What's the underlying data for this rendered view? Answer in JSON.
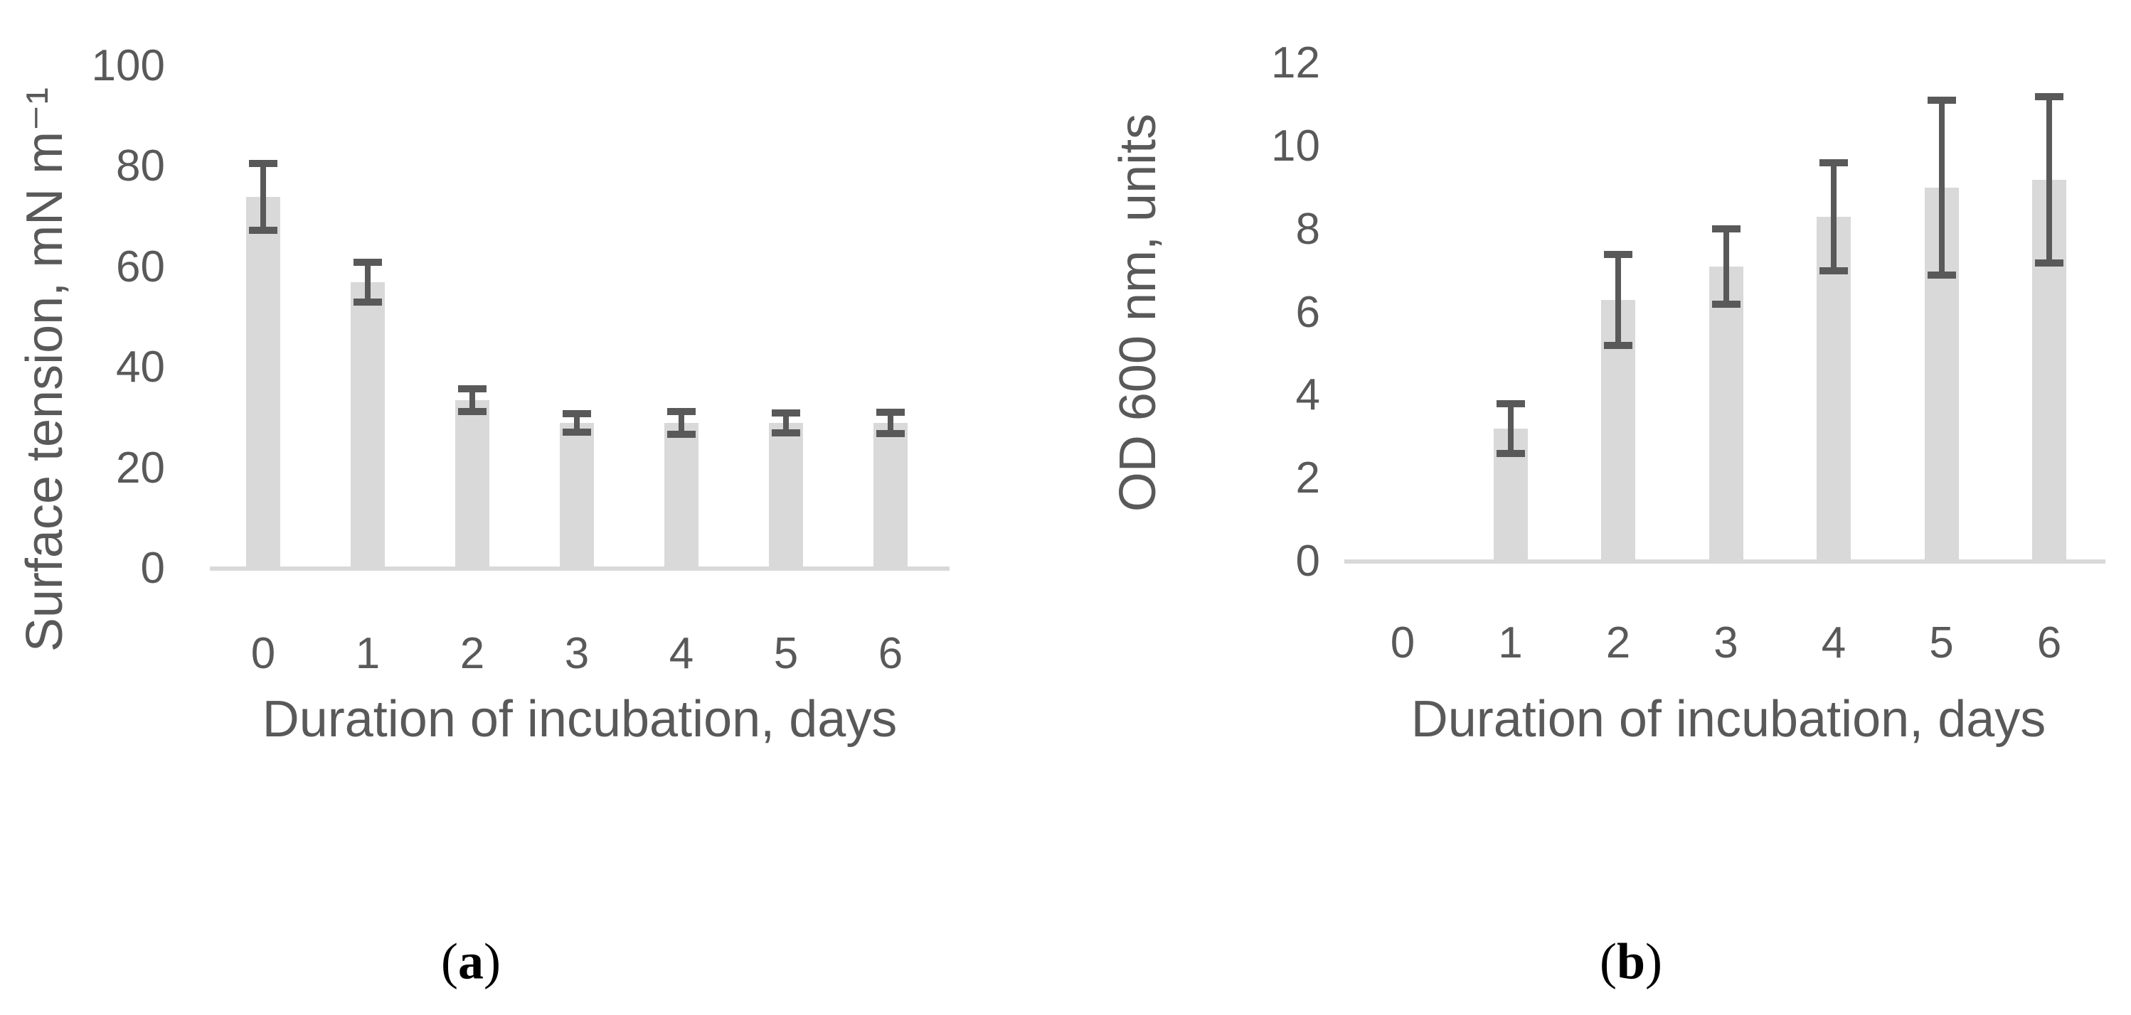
{
  "figure": {
    "background": "#ffffff"
  },
  "colors": {
    "bar": "#d9d9d9",
    "error_bar": "#595959",
    "axis_text": "#595959",
    "axis_line": "#d9d9d9",
    "caption_text": "#000000"
  },
  "chart_data": [
    {
      "type": "bar",
      "panel": "a",
      "title": "",
      "xlabel": "Duration of incubation, days",
      "ylabel": "Surface tension, mN m⁻¹",
      "categories": [
        "0",
        "1",
        "2",
        "3",
        "4",
        "5",
        "6"
      ],
      "values": [
        74,
        57,
        33.5,
        29,
        29,
        29,
        29
      ],
      "errors": [
        6.6,
        4.0,
        2.3,
        1.8,
        2.2,
        2.0,
        2.1
      ],
      "ylim": [
        0,
        100
      ],
      "ytick_step": 20,
      "yticks": [
        "0",
        "20",
        "40",
        "60",
        "80",
        "100"
      ],
      "grid": false,
      "legend": "none",
      "caption": {
        "open": "(",
        "letter": "a",
        "close": ")"
      }
    },
    {
      "type": "bar",
      "panel": "b",
      "title": "",
      "xlabel": "Duration of incubation, days",
      "ylabel": "OD 600 nm, units",
      "categories": [
        "0",
        "1",
        "2",
        "3",
        "4",
        "5",
        "6"
      ],
      "values": [
        0.05,
        3.2,
        6.3,
        7.1,
        8.3,
        9.0,
        9.2
      ],
      "errors": [
        0,
        0.6,
        1.1,
        0.9,
        1.3,
        2.1,
        2.0
      ],
      "ylim": [
        0,
        12
      ],
      "ytick_step": 2,
      "yticks": [
        "0",
        "2",
        "4",
        "6",
        "8",
        "10",
        "12"
      ],
      "grid": false,
      "legend": "none",
      "caption": {
        "open": "(",
        "letter": "b",
        "close": ")"
      }
    }
  ]
}
